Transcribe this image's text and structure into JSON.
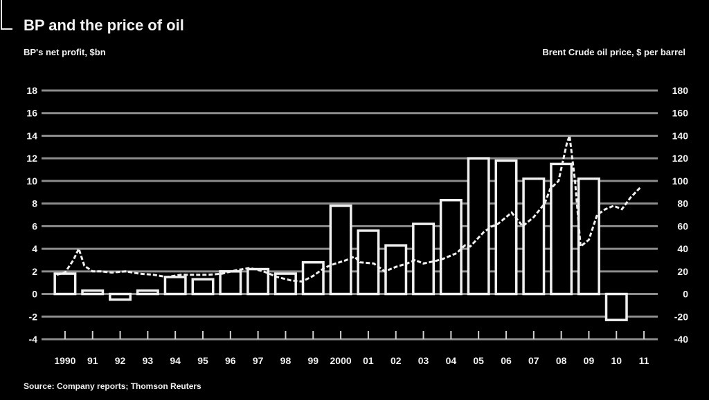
{
  "chart_data": {
    "type": "bar",
    "title": "BP and the price of oil",
    "left_axis_label_line1": "BP's net profit, $bn",
    "left_axis_label_line2": "",
    "right_axis_label_line1": "Brent Crude oil price, $ per barrel",
    "right_axis_label_line2": "",
    "source": "Source: Company reports; Thomson Reuters",
    "categories": [
      "1990",
      "91",
      "92",
      "93",
      "94",
      "95",
      "96",
      "97",
      "98",
      "99",
      "2000",
      "01",
      "02",
      "03",
      "04",
      "05",
      "06",
      "07",
      "08",
      "09",
      "10",
      "11"
    ],
    "x_tick_labels": [
      "1990",
      "91",
      "92",
      "93",
      "94",
      "95",
      "96",
      "97",
      "98",
      "99",
      "2000",
      "01",
      "02",
      "03",
      "04",
      "05",
      "06",
      "07",
      "08",
      "09",
      "10",
      "11"
    ],
    "ylim_left": [
      -4,
      18
    ],
    "left_ticks": [
      "-4",
      "-2",
      "0",
      "2",
      "4",
      "6",
      "8",
      "10",
      "12",
      "14",
      "16",
      "18"
    ],
    "ylim_right": [
      -40,
      180
    ],
    "right_ticks": [
      "-40",
      "-20",
      "0",
      "20",
      "40",
      "60",
      "80",
      "100",
      "120",
      "140",
      "160",
      "180"
    ],
    "grid": true,
    "series": [
      {
        "kind": "bar",
        "axis": "left",
        "values": [
          1.8,
          0.3,
          -0.5,
          0.3,
          1.5,
          1.3,
          2.0,
          2.2,
          1.8,
          2.8,
          7.8,
          5.6,
          4.3,
          6.2,
          8.3,
          12.0,
          11.8,
          10.2,
          11.5,
          10.2,
          -2.3,
          null
        ]
      },
      {
        "kind": "line",
        "axis": "right",
        "points": [
          [
            "1990.0",
            17
          ],
          [
            "1990.3",
            19
          ],
          [
            "1990.6",
            30
          ],
          [
            "1990.8",
            40
          ],
          [
            "1991.0",
            25
          ],
          [
            "1991.3",
            20
          ],
          [
            "1991.6",
            20
          ],
          [
            "1992.0",
            19
          ],
          [
            "1992.5",
            20
          ],
          [
            "1993.0",
            18
          ],
          [
            "1993.5",
            17
          ],
          [
            "1994.0",
            15
          ],
          [
            "1994.5",
            17
          ],
          [
            "1995.0",
            17
          ],
          [
            "1995.5",
            17
          ],
          [
            "1996.0",
            18
          ],
          [
            "1996.5",
            21
          ],
          [
            "1997.0",
            23
          ],
          [
            "1997.5",
            20
          ],
          [
            "1998.0",
            15
          ],
          [
            "1998.5",
            12
          ],
          [
            "1998.9",
            11
          ],
          [
            "1999.3",
            16
          ],
          [
            "1999.7",
            23
          ],
          [
            "2000.0",
            26
          ],
          [
            "2000.5",
            30
          ],
          [
            "2000.8",
            33
          ],
          [
            "2001.0",
            28
          ],
          [
            "2001.5",
            27
          ],
          [
            "2001.9",
            20
          ],
          [
            "2002.3",
            24
          ],
          [
            "2002.7",
            27
          ],
          [
            "2003.0",
            30
          ],
          [
            "2003.3",
            27
          ],
          [
            "2003.7",
            29
          ],
          [
            "2004.0",
            31
          ],
          [
            "2004.5",
            36
          ],
          [
            "2004.8",
            43
          ],
          [
            "2005.0",
            42
          ],
          [
            "2005.5",
            55
          ],
          [
            "2005.8",
            60
          ],
          [
            "2006.0",
            62
          ],
          [
            "2006.5",
            72
          ],
          [
            "2006.9",
            60
          ],
          [
            "2007.3",
            68
          ],
          [
            "2007.7",
            80
          ],
          [
            "2007.9",
            93
          ],
          [
            "2008.2",
            100
          ],
          [
            "2008.5",
            133
          ],
          [
            "2008.6",
            140
          ],
          [
            "2008.8",
            100
          ],
          [
            "2009.0",
            42
          ],
          [
            "2009.3",
            48
          ],
          [
            "2009.6",
            70
          ],
          [
            "2009.9",
            75
          ],
          [
            "2010.2",
            78
          ],
          [
            "2010.5",
            75
          ],
          [
            "2010.8",
            85
          ],
          [
            "2011.0",
            90
          ],
          [
            "2011.2",
            95
          ]
        ]
      }
    ]
  }
}
